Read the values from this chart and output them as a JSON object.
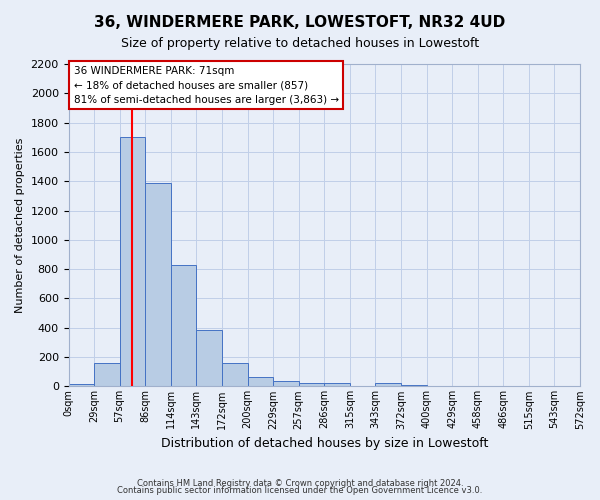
{
  "title": "36, WINDERMERE PARK, LOWESTOFT, NR32 4UD",
  "subtitle": "Size of property relative to detached houses in Lowestoft",
  "xlabel": "Distribution of detached houses by size in Lowestoft",
  "ylabel": "Number of detached properties",
  "bin_labels": [
    "0sqm",
    "29sqm",
    "57sqm",
    "86sqm",
    "114sqm",
    "143sqm",
    "172sqm",
    "200sqm",
    "229sqm",
    "257sqm",
    "286sqm",
    "315sqm",
    "343sqm",
    "372sqm",
    "400sqm",
    "429sqm",
    "458sqm",
    "486sqm",
    "515sqm",
    "543sqm",
    "572sqm"
  ],
  "bar_values": [
    15,
    160,
    1700,
    1390,
    830,
    385,
    160,
    65,
    35,
    25,
    25,
    0,
    20,
    10,
    0,
    0,
    0,
    0,
    0,
    0
  ],
  "bar_color": "#b8cce4",
  "bar_edge_color": "#4472c4",
  "grid_color": "#c0cfe8",
  "bg_color": "#e8eef8",
  "annotation_line1": "36 WINDERMERE PARK: 71sqm",
  "annotation_line2": "← 18% of detached houses are smaller (857)",
  "annotation_line3": "81% of semi-detached houses are larger (3,863) →",
  "annotation_box_color": "#cc0000",
  "ylim": [
    0,
    2200
  ],
  "yticks": [
    0,
    200,
    400,
    600,
    800,
    1000,
    1200,
    1400,
    1600,
    1800,
    2000,
    2200
  ],
  "footer_line1": "Contains HM Land Registry data © Crown copyright and database right 2024.",
  "footer_line2": "Contains public sector information licensed under the Open Government Licence v3.0.",
  "prop_sqm": 71,
  "bin_start_sqm": [
    0,
    29,
    57,
    86,
    114,
    143,
    172,
    200,
    229,
    257,
    286,
    315,
    343,
    372,
    400,
    429,
    458,
    486,
    515,
    543,
    572
  ]
}
